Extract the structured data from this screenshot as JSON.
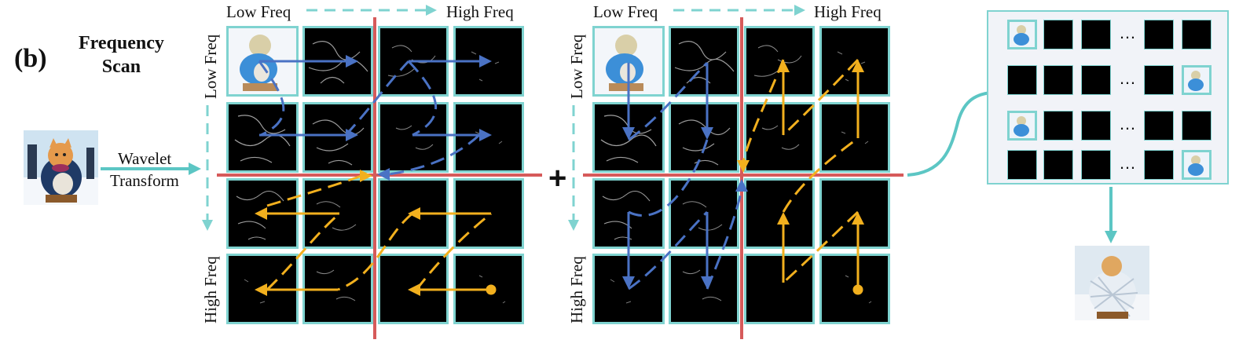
{
  "figure": {
    "label": "(b)",
    "title_line1": "Frequency",
    "title_line2": "Scan",
    "wavelet_line1": "Wavelet",
    "wavelet_line2": "Transform",
    "plus": "+"
  },
  "grid_left": {
    "top_low": "Low Freq",
    "top_high": "High Freq",
    "side_low": "Low Freq",
    "side_high": "High Freq"
  },
  "grid_right": {
    "top_low": "Low Freq",
    "top_high": "High Freq",
    "side_low": "Low Freq",
    "side_high": "High Freq"
  },
  "panel": {
    "ellipsis": "…"
  },
  "colors": {
    "accent_teal": "#7fd3d0",
    "divider_red": "#d65a5a",
    "scan_blue": "#4a72c4",
    "scan_yellow": "#f2b01e"
  }
}
